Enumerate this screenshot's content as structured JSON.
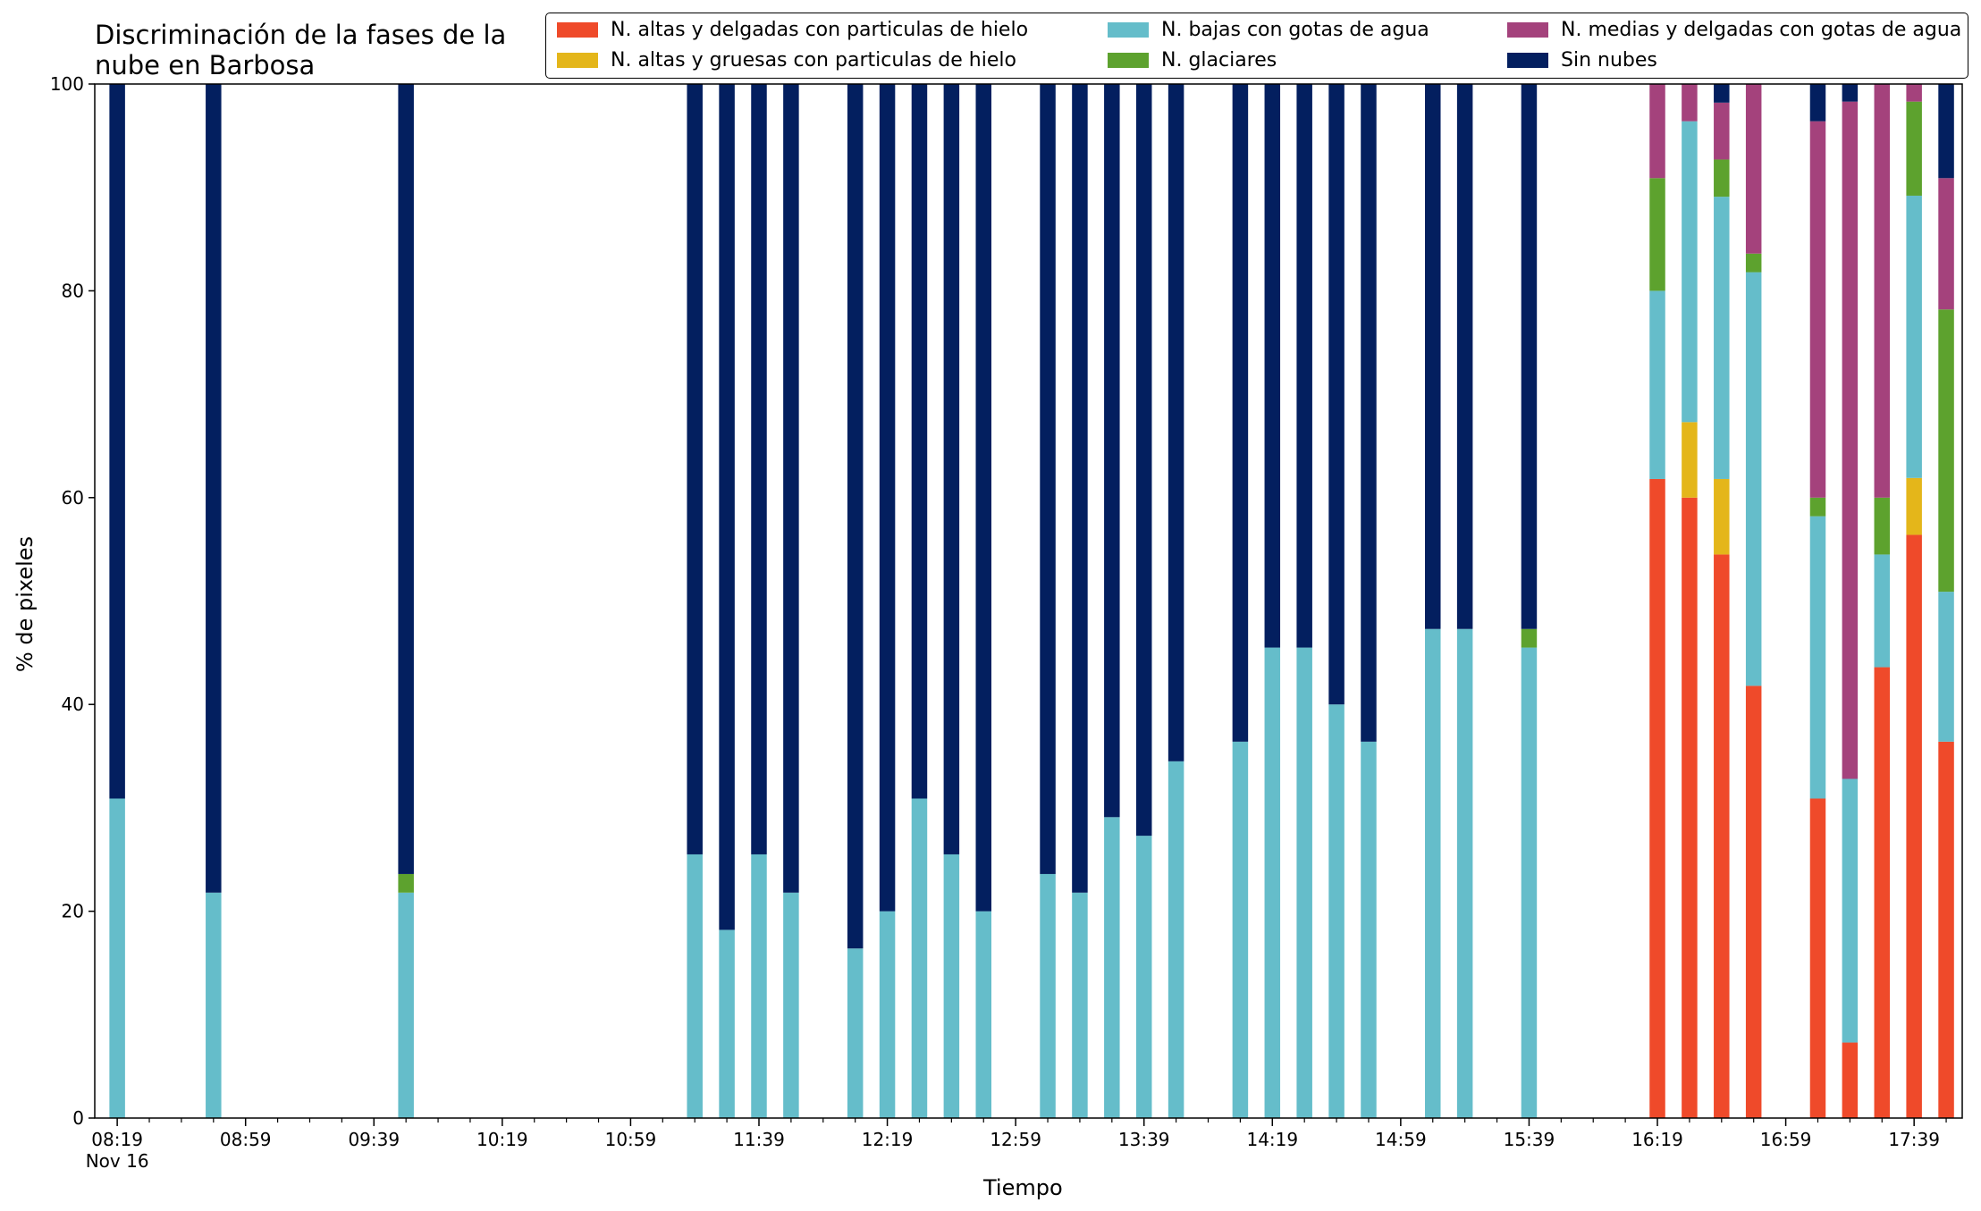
{
  "chart_data": {
    "type": "bar",
    "stacked": true,
    "title_lines": [
      "Discriminación de la fases de la",
      "nube en Barbosa"
    ],
    "xlabel": "Tiempo",
    "ylabel": "% de pixeles",
    "ylim": [
      0,
      100
    ],
    "yticks": [
      0,
      20,
      40,
      60,
      80,
      100
    ],
    "xlim_minutes": [
      492,
      1074
    ],
    "xticks": [
      {
        "minute": 499,
        "label": "08:19"
      },
      {
        "minute": 539,
        "label": "08:59"
      },
      {
        "minute": 579,
        "label": "09:39"
      },
      {
        "minute": 619,
        "label": "10:19"
      },
      {
        "minute": 659,
        "label": "10:59"
      },
      {
        "minute": 699,
        "label": "11:39"
      },
      {
        "minute": 739,
        "label": "12:19"
      },
      {
        "minute": 779,
        "label": "12:59"
      },
      {
        "minute": 819,
        "label": "13:39"
      },
      {
        "minute": 859,
        "label": "14:19"
      },
      {
        "minute": 899,
        "label": "14:59"
      },
      {
        "minute": 939,
        "label": "15:39"
      },
      {
        "minute": 979,
        "label": "16:19"
      },
      {
        "minute": 1019,
        "label": "16:59"
      },
      {
        "minute": 1059,
        "label": "17:39"
      }
    ],
    "date_label": "Nov 16",
    "legend_position": "top-right",
    "grid": false,
    "series": [
      {
        "name": "N. altas y delgadas con particulas de hielo",
        "color": "#ef4a2a"
      },
      {
        "name": "N. altas y gruesas con particulas de hielo",
        "color": "#e4b61a"
      },
      {
        "name": "N. bajas con gotas de agua",
        "color": "#65bdca"
      },
      {
        "name": "N. glaciares",
        "color": "#5da22e"
      },
      {
        "name": "N. medias y delgadas con gotas de agua",
        "color": "#a4427c"
      },
      {
        "name": "Sin nubes",
        "color": "#031f5f"
      }
    ],
    "bars": [
      {
        "time": "08:19",
        "values": [
          0,
          0,
          30.9,
          0,
          0,
          69.1
        ]
      },
      {
        "time": "08:49",
        "values": [
          0,
          0,
          21.8,
          0,
          0,
          78.2
        ]
      },
      {
        "time": "09:49",
        "values": [
          0,
          0,
          21.8,
          1.8,
          0,
          76.4
        ]
      },
      {
        "time": "11:19",
        "values": [
          0,
          0,
          25.5,
          0,
          0,
          74.5
        ]
      },
      {
        "time": "11:29",
        "values": [
          0,
          0,
          18.2,
          0,
          0,
          81.8
        ]
      },
      {
        "time": "11:39",
        "values": [
          0,
          0,
          25.5,
          0,
          0,
          74.5
        ]
      },
      {
        "time": "11:49",
        "values": [
          0,
          0,
          21.8,
          0,
          0,
          78.2
        ]
      },
      {
        "time": "12:09",
        "values": [
          0,
          0,
          16.4,
          0,
          0,
          83.6
        ]
      },
      {
        "time": "12:19",
        "values": [
          0,
          0,
          20.0,
          0,
          0,
          80.0
        ]
      },
      {
        "time": "12:29",
        "values": [
          0,
          0,
          30.9,
          0,
          0,
          69.1
        ]
      },
      {
        "time": "12:39",
        "values": [
          0,
          0,
          25.5,
          0,
          0,
          74.5
        ]
      },
      {
        "time": "12:49",
        "values": [
          0,
          0,
          20.0,
          0,
          0,
          80.0
        ]
      },
      {
        "time": "13:09",
        "values": [
          0,
          0,
          23.6,
          0,
          0,
          76.4
        ]
      },
      {
        "time": "13:19",
        "values": [
          0,
          0,
          21.8,
          0,
          0,
          78.2
        ]
      },
      {
        "time": "13:29",
        "values": [
          0,
          0,
          29.1,
          0,
          0,
          70.9
        ]
      },
      {
        "time": "13:39",
        "values": [
          0,
          0,
          27.3,
          0,
          0,
          72.7
        ]
      },
      {
        "time": "13:49",
        "values": [
          0,
          0,
          34.5,
          0,
          0,
          65.5
        ]
      },
      {
        "time": "14:09",
        "values": [
          0,
          0,
          36.4,
          0,
          0,
          63.6
        ]
      },
      {
        "time": "14:19",
        "values": [
          0,
          0,
          45.5,
          0,
          0,
          54.5
        ]
      },
      {
        "time": "14:29",
        "values": [
          0,
          0,
          45.5,
          0,
          0,
          54.5
        ]
      },
      {
        "time": "14:39",
        "values": [
          0,
          0,
          40.0,
          0,
          0,
          60.0
        ]
      },
      {
        "time": "14:49",
        "values": [
          0,
          0,
          36.4,
          0,
          0,
          63.6
        ]
      },
      {
        "time": "15:09",
        "values": [
          0,
          0,
          47.3,
          0,
          0,
          52.7
        ]
      },
      {
        "time": "15:19",
        "values": [
          0,
          0,
          47.3,
          0,
          0,
          52.7
        ]
      },
      {
        "time": "15:39",
        "values": [
          0,
          0,
          45.5,
          1.8,
          0,
          52.7
        ]
      },
      {
        "time": "16:19",
        "values": [
          61.8,
          0,
          18.2,
          10.9,
          9.1,
          0
        ]
      },
      {
        "time": "16:29",
        "values": [
          60.0,
          7.3,
          29.1,
          0,
          3.6,
          0
        ]
      },
      {
        "time": "16:39",
        "values": [
          54.5,
          7.3,
          27.3,
          3.6,
          5.5,
          1.8
        ]
      },
      {
        "time": "16:49",
        "values": [
          41.8,
          0,
          40.0,
          1.8,
          16.4,
          0
        ]
      },
      {
        "time": "17:09",
        "values": [
          30.9,
          0,
          27.3,
          1.8,
          36.4,
          3.6
        ]
      },
      {
        "time": "17:19",
        "values": [
          7.3,
          0,
          25.5,
          0,
          65.5,
          1.7
        ]
      },
      {
        "time": "17:29",
        "values": [
          43.6,
          0,
          10.9,
          5.5,
          40.0,
          0
        ]
      },
      {
        "time": "17:39",
        "values": [
          56.4,
          5.5,
          27.3,
          9.1,
          1.7,
          0
        ]
      },
      {
        "time": "17:49",
        "values": [
          36.4,
          0,
          14.5,
          27.3,
          12.7,
          9.1
        ]
      }
    ]
  }
}
